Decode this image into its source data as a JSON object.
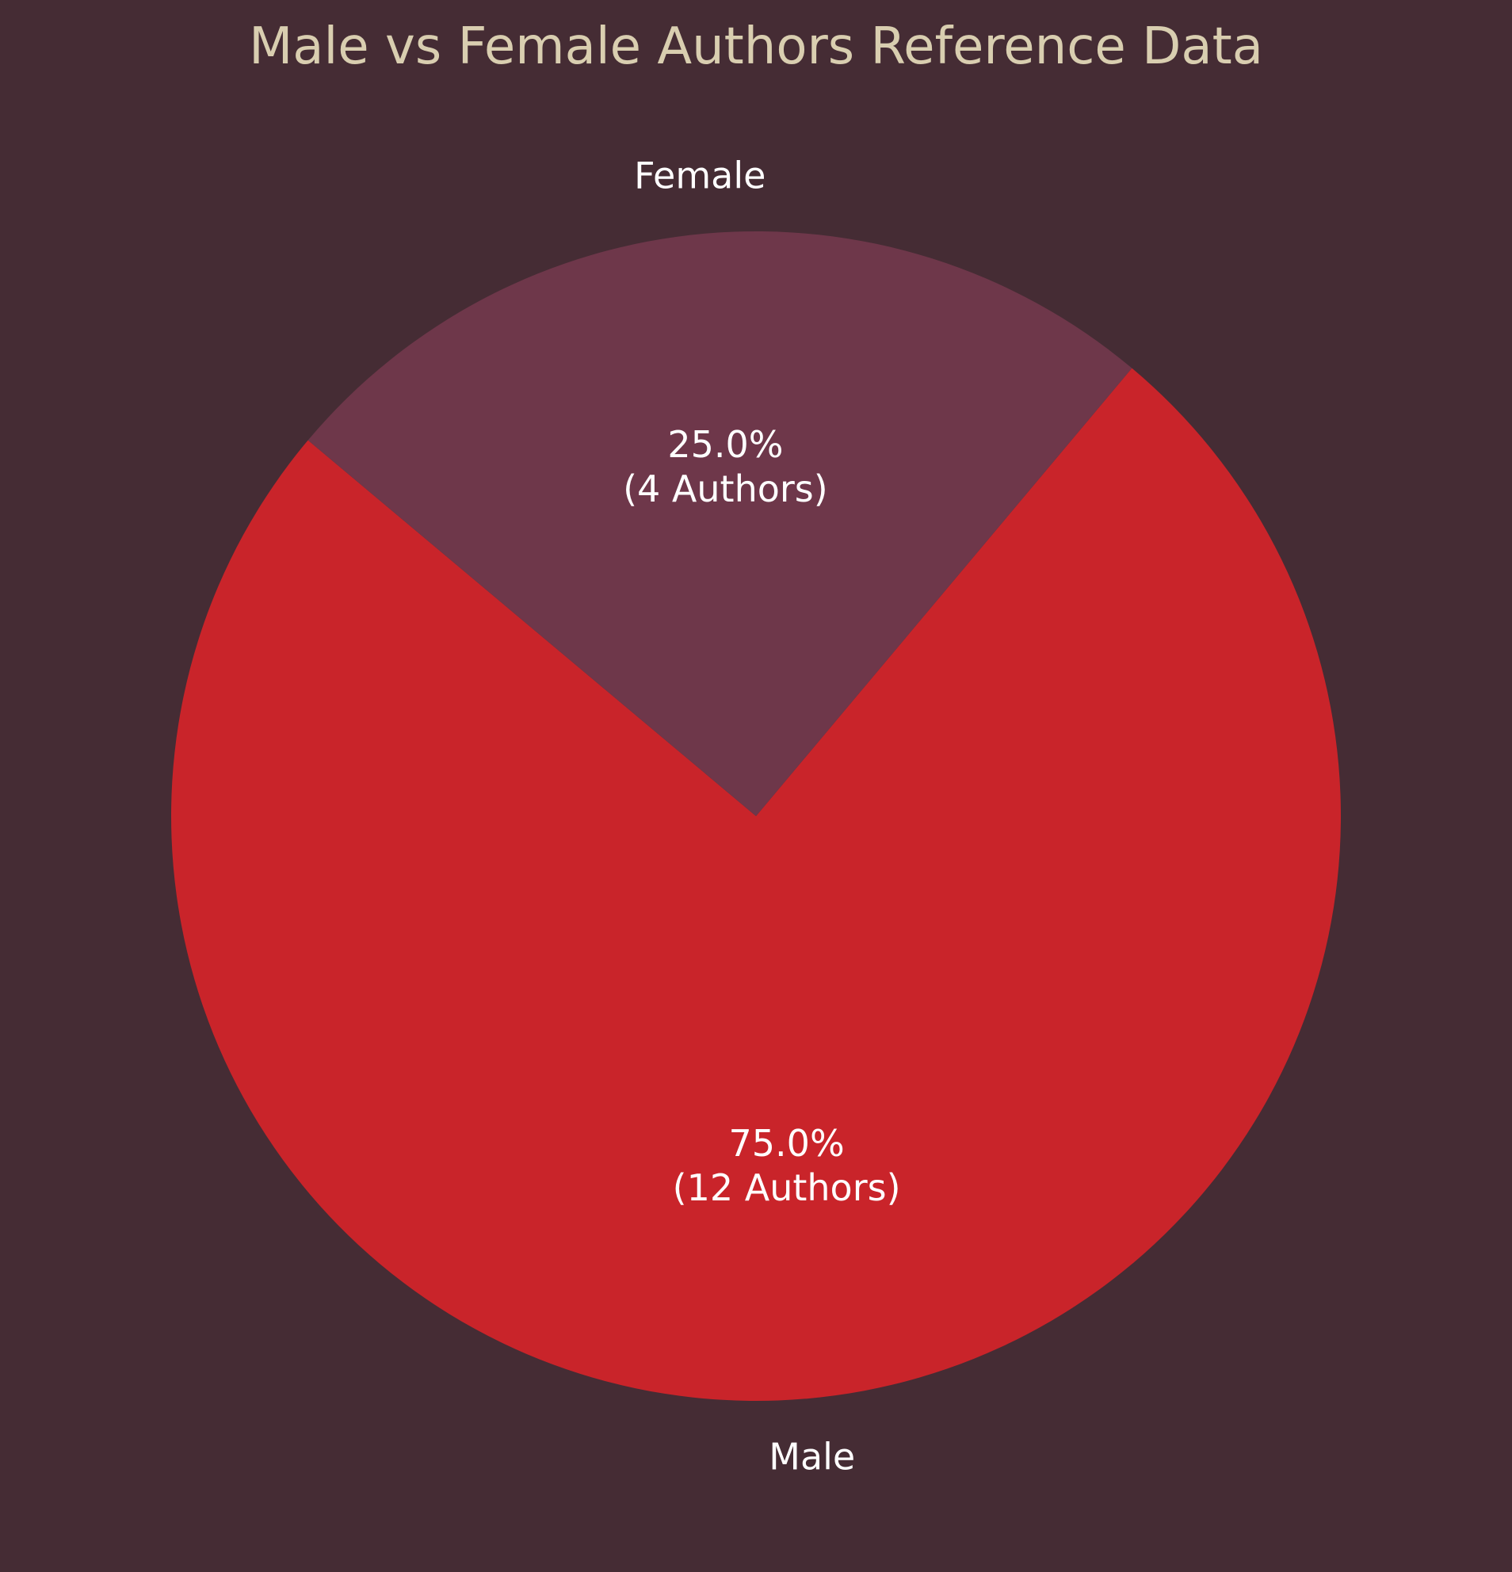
{
  "chart_data": {
    "type": "pie",
    "title": "Male vs Female Authors Reference Data",
    "categories": [
      "Male",
      "Female"
    ],
    "values": [
      12,
      4
    ],
    "percent_labels": [
      "75.0%",
      "25.0%"
    ],
    "count_labels": [
      "(12 Authors)",
      "(4 Authors)"
    ],
    "colors": [
      "#c9242a",
      "#6e374a"
    ],
    "background_color": "#452c34",
    "title_color": "#d9ceb0",
    "label_color": "#ffffff"
  }
}
